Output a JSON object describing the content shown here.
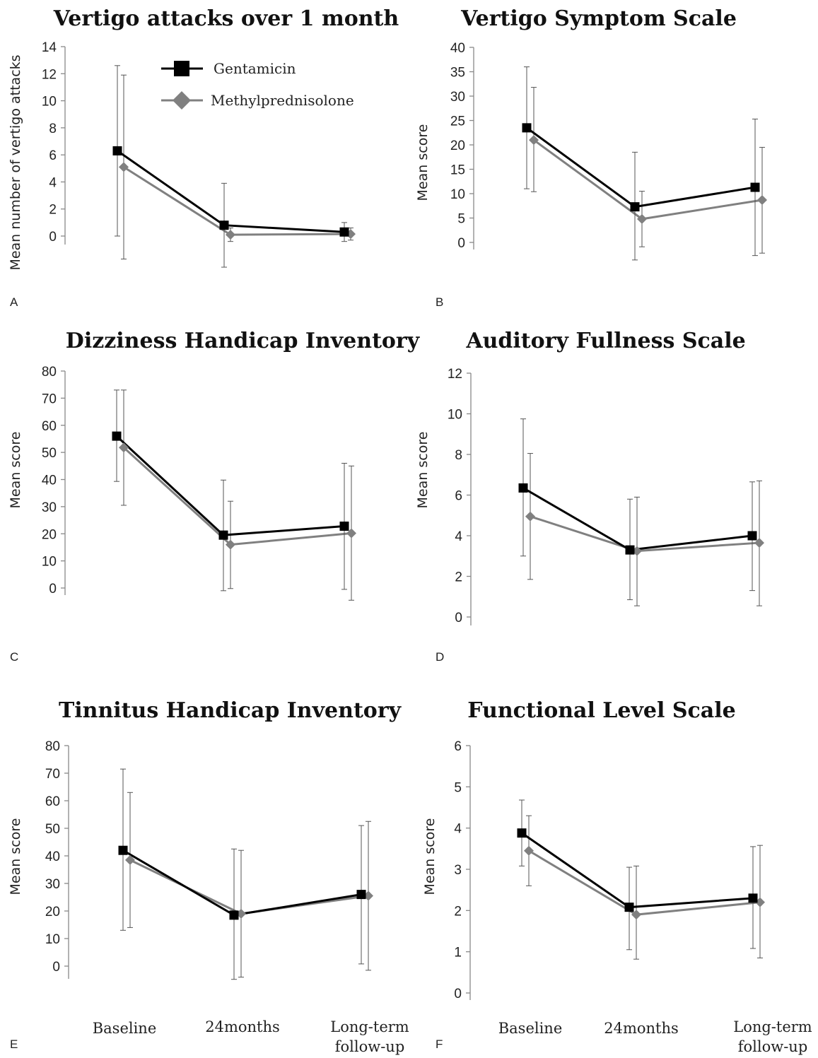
{
  "figure": {
    "x_categories": [
      "Baseline",
      "24months",
      "Long-term follow-up"
    ],
    "legend": [
      {
        "name": "Gentamicin",
        "color": "#000000",
        "marker": "square"
      },
      {
        "name": "Methylprednisolone",
        "color": "#808080",
        "marker": "diamond"
      }
    ]
  },
  "chart_data": [
    {
      "panel": "A",
      "type": "line",
      "title": "Vertigo attacks over 1 month",
      "ylabel": "Mean number of vertigo attacks",
      "ylim": [
        0,
        14
      ],
      "yticks": [
        0,
        2,
        4,
        6,
        8,
        10,
        12,
        14
      ],
      "categories": [
        "Baseline",
        "24months",
        "Long-term follow-up"
      ],
      "series": [
        {
          "name": "Gentamicin",
          "values": [
            6.3,
            0.8,
            0.3
          ],
          "err_low": [
            0,
            -2.3,
            -0.4
          ],
          "err_high": [
            12.6,
            3.9,
            1.0
          ]
        },
        {
          "name": "Methylprednisolone",
          "values": [
            5.1,
            0.1,
            0.15
          ],
          "err_low": [
            -1.7,
            -0.4,
            -0.3
          ],
          "err_high": [
            11.9,
            0.6,
            0.6
          ]
        }
      ]
    },
    {
      "panel": "B",
      "type": "line",
      "title": "Vertigo Symptom Scale",
      "ylabel": "Mean score",
      "ylim": [
        0,
        40
      ],
      "yticks": [
        0,
        5,
        10,
        15,
        20,
        25,
        30,
        35,
        40
      ],
      "categories": [
        "Baseline",
        "24months",
        "Long-term follow-up"
      ],
      "series": [
        {
          "name": "Gentamicin",
          "values": [
            23.5,
            7.3,
            11.3
          ],
          "err_low": [
            11,
            -3.6,
            -2.7
          ],
          "err_high": [
            36,
            18.5,
            25.3
          ]
        },
        {
          "name": "Methylprednisolone",
          "values": [
            21,
            4.8,
            8.7
          ],
          "err_low": [
            10.4,
            -0.9,
            -2.2
          ],
          "err_high": [
            31.8,
            10.5,
            19.5
          ]
        }
      ]
    },
    {
      "panel": "C",
      "type": "line",
      "title": "Dizziness Handicap Inventory",
      "ylabel": "Mean score",
      "ylim": [
        0,
        80
      ],
      "yticks": [
        0,
        10,
        20,
        30,
        40,
        50,
        60,
        70,
        80
      ],
      "categories": [
        "Baseline",
        "24months",
        "Long-term follow-up"
      ],
      "series": [
        {
          "name": "Gentamicin",
          "values": [
            56,
            19.5,
            22.8
          ],
          "err_low": [
            39.3,
            -1,
            -0.5
          ],
          "err_high": [
            73,
            39.8,
            46
          ]
        },
        {
          "name": "Methylprednisolone",
          "values": [
            51.8,
            16,
            20.2
          ],
          "err_low": [
            30.5,
            -0.2,
            -4.5
          ],
          "err_high": [
            73,
            32,
            45
          ]
        }
      ]
    },
    {
      "panel": "D",
      "type": "line",
      "title": "Auditory Fullness Scale",
      "ylabel": "Mean score",
      "ylim": [
        0,
        12
      ],
      "yticks": [
        0,
        2,
        4,
        6,
        8,
        10,
        12
      ],
      "categories": [
        "Baseline",
        "24months",
        "Long-term follow-up"
      ],
      "series": [
        {
          "name": "Gentamicin",
          "values": [
            6.35,
            3.3,
            4.0
          ],
          "err_low": [
            3.0,
            0.85,
            1.3
          ],
          "err_high": [
            9.75,
            5.8,
            6.65
          ]
        },
        {
          "name": "Methylprednisolone",
          "values": [
            4.95,
            3.25,
            3.65
          ],
          "err_low": [
            1.85,
            0.55,
            0.55
          ],
          "err_high": [
            8.05,
            5.9,
            6.7
          ]
        }
      ]
    },
    {
      "panel": "E",
      "type": "line",
      "title": "Tinnitus Handicap Inventory",
      "ylabel": "Mean score",
      "ylim": [
        0,
        80
      ],
      "yticks": [
        0,
        10,
        20,
        30,
        40,
        50,
        60,
        70,
        80
      ],
      "categories": [
        "Baseline",
        "24months",
        "Long-term follow-up"
      ],
      "series": [
        {
          "name": "Gentamicin",
          "values": [
            42,
            18.5,
            26
          ],
          "err_low": [
            13,
            -4.8,
            0.8
          ],
          "err_high": [
            71.5,
            42.5,
            51
          ]
        },
        {
          "name": "Methylprednisolone",
          "values": [
            38.5,
            19,
            25.5
          ],
          "err_low": [
            14,
            -4,
            -1.5
          ],
          "err_high": [
            63,
            42,
            52.5
          ]
        }
      ]
    },
    {
      "panel": "F",
      "type": "line",
      "title": "Functional Level Scale",
      "ylabel": "Mean score",
      "ylim": [
        0,
        6
      ],
      "yticks": [
        0,
        1,
        2,
        3,
        4,
        5,
        6
      ],
      "categories": [
        "Baseline",
        "24months",
        "Long-term follow-up"
      ],
      "series": [
        {
          "name": "Gentamicin",
          "values": [
            3.88,
            2.08,
            2.3
          ],
          "err_low": [
            3.08,
            1.05,
            1.08
          ],
          "err_high": [
            4.68,
            3.05,
            3.55
          ]
        },
        {
          "name": "Methylprednisolone",
          "values": [
            3.45,
            1.9,
            2.2
          ],
          "err_low": [
            2.6,
            0.82,
            0.85
          ],
          "err_high": [
            4.3,
            3.08,
            3.58
          ]
        }
      ]
    }
  ]
}
